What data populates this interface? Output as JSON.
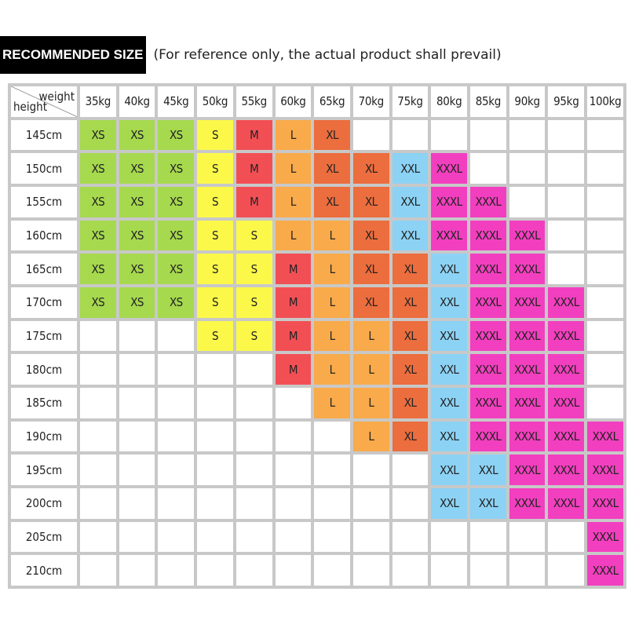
{
  "header": {
    "badge": "RECOMMENDED SIZE",
    "note": "(For reference only, the actual product shall prevail)"
  },
  "chart_data": {
    "type": "table",
    "corner_top": "weight",
    "corner_bottom": "height",
    "columns": [
      "35kg",
      "40kg",
      "45kg",
      "50kg",
      "55kg",
      "60kg",
      "65kg",
      "70kg",
      "75kg",
      "80kg",
      "85kg",
      "90kg",
      "95kg",
      "100kg"
    ],
    "rows": [
      {
        "height": "145cm",
        "sizes": [
          "XS",
          "XS",
          "XS",
          "S",
          "M",
          "L",
          "XL",
          "",
          "",
          "",
          "",
          "",
          "",
          ""
        ]
      },
      {
        "height": "150cm",
        "sizes": [
          "XS",
          "XS",
          "XS",
          "S",
          "M",
          "L",
          "XL",
          "XL",
          "XXL",
          "XXXL",
          "",
          "",
          "",
          ""
        ]
      },
      {
        "height": "155cm",
        "sizes": [
          "XS",
          "XS",
          "XS",
          "S",
          "M",
          "L",
          "XL",
          "XL",
          "XXL",
          "XXXL",
          "XXXL",
          "",
          "",
          ""
        ]
      },
      {
        "height": "160cm",
        "sizes": [
          "XS",
          "XS",
          "XS",
          "S",
          "S",
          "L",
          "L",
          "XL",
          "XXL",
          "XXXL",
          "XXXL",
          "XXXL",
          "",
          ""
        ]
      },
      {
        "height": "165cm",
        "sizes": [
          "XS",
          "XS",
          "XS",
          "S",
          "S",
          "M",
          "L",
          "XL",
          "XL",
          "XXL",
          "XXXL",
          "XXXL",
          "",
          ""
        ]
      },
      {
        "height": "170cm",
        "sizes": [
          "XS",
          "XS",
          "XS",
          "S",
          "S",
          "M",
          "L",
          "XL",
          "XL",
          "XXL",
          "XXXL",
          "XXXL",
          "XXXL",
          ""
        ]
      },
      {
        "height": "175cm",
        "sizes": [
          "",
          "",
          "",
          "S",
          "S",
          "M",
          "L",
          "L",
          "XL",
          "XXL",
          "XXXL",
          "XXXL",
          "XXXL",
          ""
        ]
      },
      {
        "height": "180cm",
        "sizes": [
          "",
          "",
          "",
          "",
          "",
          "M",
          "L",
          "L",
          "XL",
          "XXL",
          "XXXL",
          "XXXL",
          "XXXL",
          ""
        ]
      },
      {
        "height": "185cm",
        "sizes": [
          "",
          "",
          "",
          "",
          "",
          "",
          "L",
          "L",
          "XL",
          "XXL",
          "XXXL",
          "XXXL",
          "XXXL",
          ""
        ]
      },
      {
        "height": "190cm",
        "sizes": [
          "",
          "",
          "",
          "",
          "",
          "",
          "",
          "L",
          "XL",
          "XXL",
          "XXXL",
          "XXXL",
          "XXXL",
          "XXXL"
        ]
      },
      {
        "height": "195cm",
        "sizes": [
          "",
          "",
          "",
          "",
          "",
          "",
          "",
          "",
          "",
          "XXL",
          "XXL",
          "XXXL",
          "XXXL",
          "XXXL"
        ]
      },
      {
        "height": "200cm",
        "sizes": [
          "",
          "",
          "",
          "",
          "",
          "",
          "",
          "",
          "",
          "XXL",
          "XXL",
          "XXXL",
          "XXXL",
          "XXXL"
        ]
      },
      {
        "height": "205cm",
        "sizes": [
          "",
          "",
          "",
          "",
          "",
          "",
          "",
          "",
          "",
          "",
          "",
          "",
          "",
          "XXXL"
        ]
      },
      {
        "height": "210cm",
        "sizes": [
          "",
          "",
          "",
          "",
          "",
          "",
          "",
          "",
          "",
          "",
          "",
          "",
          "",
          "XXXL"
        ]
      }
    ],
    "size_colors": {
      "XS": "#a6d94e",
      "S": "#fbf84a",
      "M": "#f24f55",
      "L": "#f9aa4a",
      "XL": "#ec6d3d",
      "XXL": "#8cd2f4",
      "XXXL": "#f23fbf"
    }
  }
}
